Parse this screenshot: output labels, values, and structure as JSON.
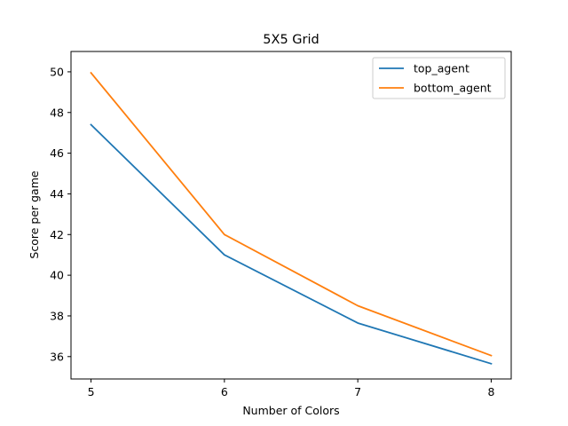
{
  "chart_data": {
    "type": "line",
    "title": "5X5 Grid",
    "xlabel": "Number of Colors",
    "ylabel": "Score per game",
    "x": [
      5,
      6,
      7,
      8
    ],
    "x_ticks": [
      5,
      6,
      7,
      8
    ],
    "y_ticks": [
      36,
      38,
      40,
      42,
      44,
      46,
      48,
      50
    ],
    "xlim": [
      4.85,
      8.15
    ],
    "ylim": [
      34.9,
      51.0
    ],
    "grid": false,
    "legend_position": "top-right",
    "series": [
      {
        "name": "top_agent",
        "color": "#1f77b4",
        "values": [
          47.4,
          41.0,
          37.65,
          35.65
        ]
      },
      {
        "name": "bottom_agent",
        "color": "#ff7f0e",
        "values": [
          49.95,
          42.0,
          38.5,
          36.05
        ]
      }
    ]
  }
}
